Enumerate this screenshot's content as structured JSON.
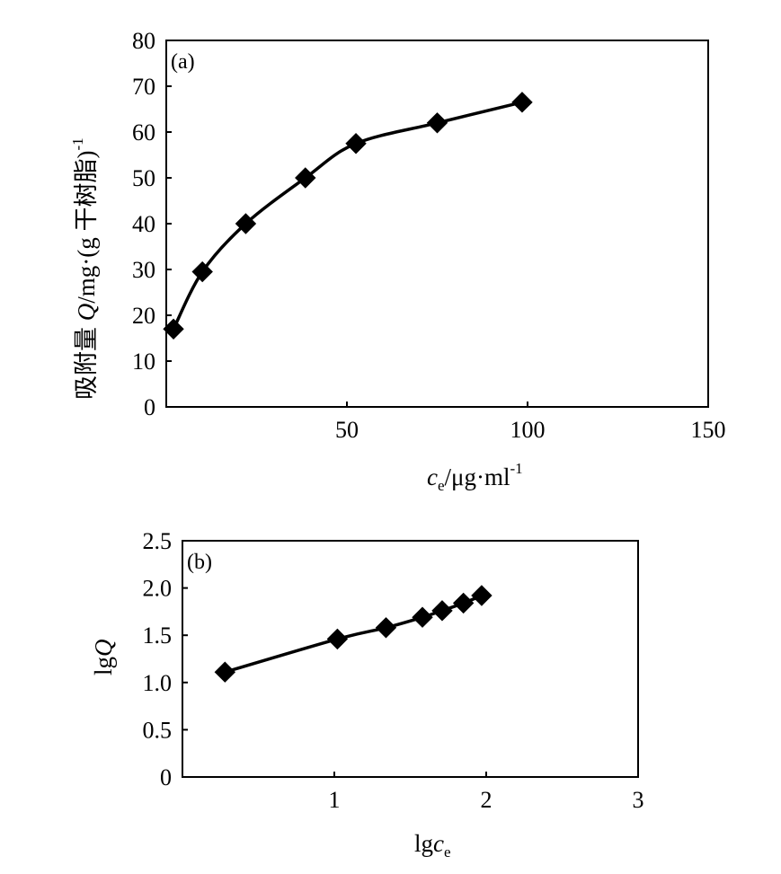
{
  "chart_data": [
    {
      "type": "line",
      "panel_label": "(a)",
      "xlabel": "c_e/μg·ml⁻¹",
      "xlabel_parts": {
        "var": "c",
        "sub": "e",
        "unit": "/μg·ml",
        "sup": "-1"
      },
      "ylabel": "吸附量 Q/mg·(g 干树脂)⁻¹",
      "ylabel_parts": {
        "pre": "吸附量 ",
        "var": "Q",
        "unit": "/mg·(g 干树脂)",
        "sup": "-1"
      },
      "xlim": [
        0,
        150
      ],
      "ylim": [
        0,
        80
      ],
      "xticks": [
        50,
        100,
        150
      ],
      "xtick_labels": [
        "50",
        "100",
        "150"
      ],
      "yticks": [
        0,
        10,
        20,
        30,
        40,
        50,
        60,
        70,
        80
      ],
      "ytick_labels": [
        "0",
        "10",
        "20",
        "30",
        "40",
        "50",
        "60",
        "70",
        "80"
      ],
      "grid": false,
      "series": [
        {
          "marker": "diamond",
          "color": "#000000",
          "x": [
            2,
            10,
            22,
            38.5,
            52.5,
            75,
            98.5
          ],
          "y": [
            17,
            29.5,
            40,
            50,
            57.5,
            62,
            66.5
          ]
        }
      ]
    },
    {
      "type": "line",
      "panel_label": "(b)",
      "xlabel": "lgc_e",
      "xlabel_parts": {
        "pre": "lg",
        "var": "c",
        "sub": "e"
      },
      "ylabel": "lgQ",
      "ylabel_parts": {
        "pre": "lg",
        "var": "Q"
      },
      "xlim": [
        0,
        3
      ],
      "ylim": [
        0,
        2.5
      ],
      "xticks": [
        1,
        2,
        3
      ],
      "xtick_labels": [
        "1",
        "2",
        "3"
      ],
      "yticks": [
        0,
        0.5,
        1.0,
        1.5,
        2.0,
        2.5
      ],
      "ytick_labels": [
        "0",
        "0.5",
        "1.0",
        "1.5",
        "2.0",
        "2.5"
      ],
      "grid": false,
      "series": [
        {
          "marker": "diamond",
          "color": "#000000",
          "x": [
            0.28,
            1.02,
            1.34,
            1.58,
            1.71,
            1.85,
            1.97
          ],
          "y": [
            1.11,
            1.46,
            1.58,
            1.69,
            1.76,
            1.84,
            1.92
          ]
        }
      ]
    }
  ]
}
